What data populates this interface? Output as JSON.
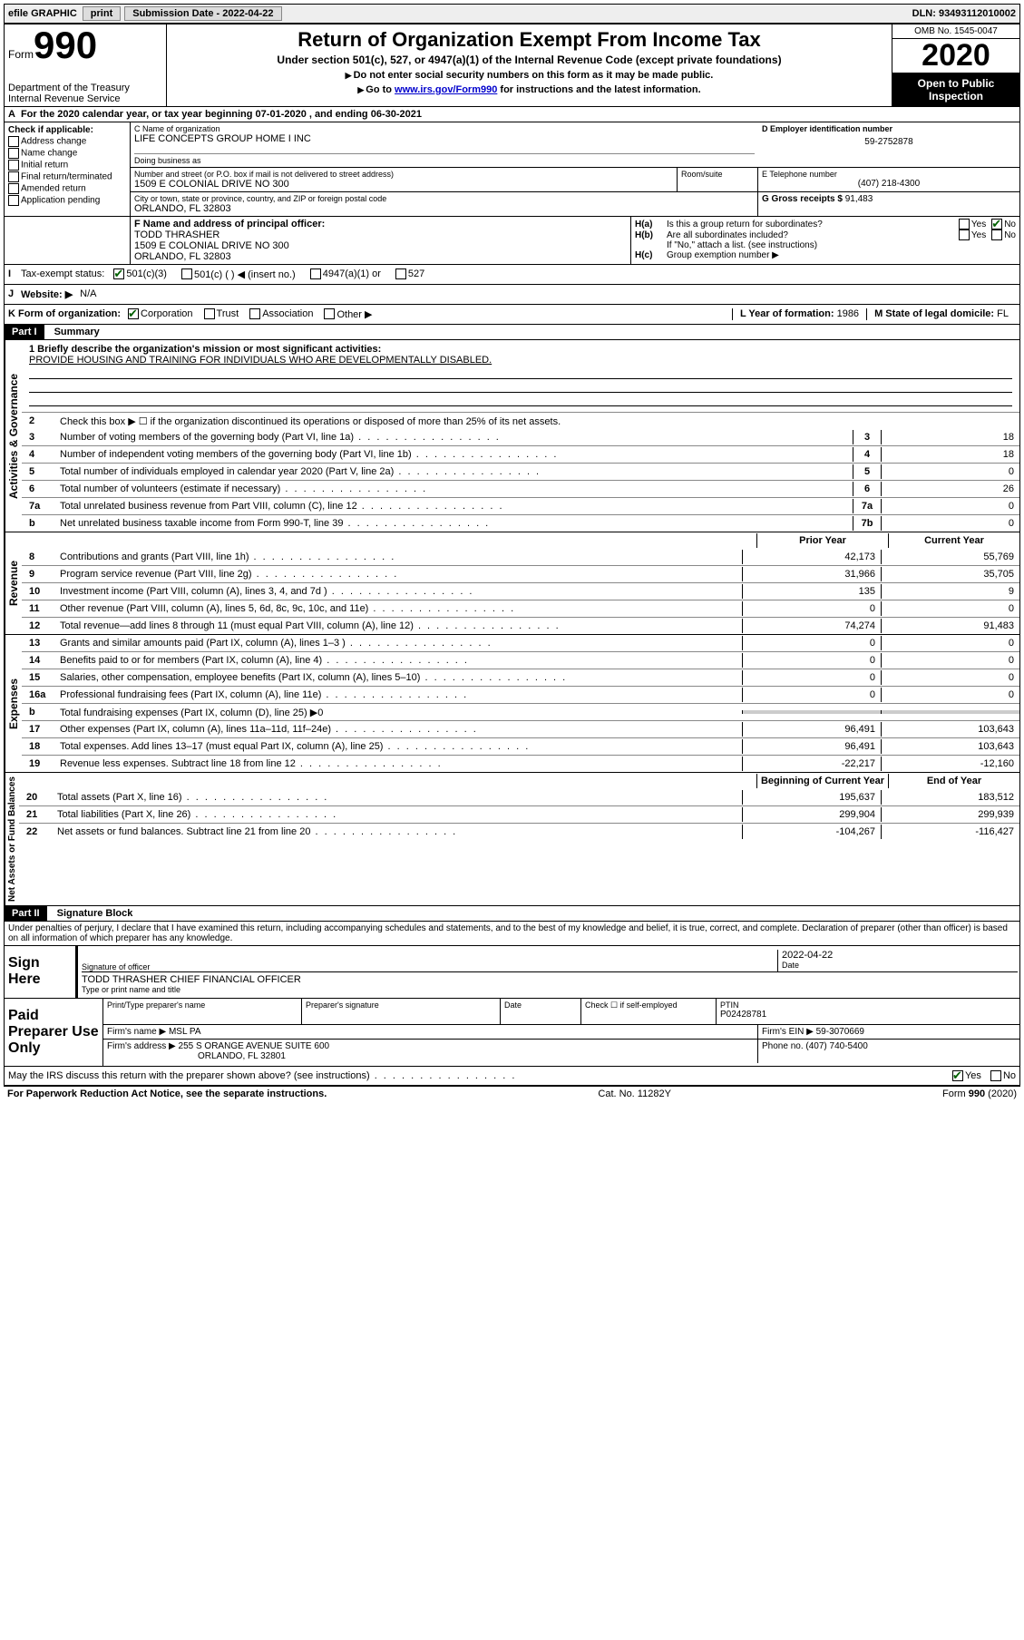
{
  "topbar": {
    "efile": "efile GRAPHIC",
    "print": "print",
    "sub_label": "Submission Date - 2022-04-22",
    "dln": "DLN: 93493112010002"
  },
  "header": {
    "form_prefix": "Form",
    "form_number": "990",
    "dept": "Department of the Treasury\nInternal Revenue Service",
    "title": "Return of Organization Exempt From Income Tax",
    "subtitle": "Under section 501(c), 527, or 4947(a)(1) of the Internal Revenue Code (except private foundations)",
    "instr1": "Do not enter social security numbers on this form as it may be made public.",
    "instr2_pre": "Go to ",
    "instr2_link": "www.irs.gov/Form990",
    "instr2_post": " for instructions and the latest information.",
    "omb": "OMB No. 1545-0047",
    "year": "2020",
    "open_public": "Open to Public Inspection"
  },
  "periodA": "For the 2020 calendar year, or tax year beginning 07-01-2020   , and ending 06-30-2021",
  "checkB": {
    "label": "Check if applicable:",
    "items": [
      "Address change",
      "Name change",
      "Initial return",
      "Final return/terminated",
      "Amended return",
      "Application pending"
    ]
  },
  "org": {
    "name_label": "C Name of organization",
    "name": "LIFE CONCEPTS GROUP HOME I INC",
    "dba_label": "Doing business as",
    "street_label": "Number and street (or P.O. box if mail is not delivered to street address)",
    "room_label": "Room/suite",
    "street": "1509 E COLONIAL DRIVE NO 300",
    "city_label": "City or town, state or province, country, and ZIP or foreign postal code",
    "city": "ORLANDO, FL  32803"
  },
  "boxD": {
    "label": "D Employer identification number",
    "value": "59-2752878"
  },
  "boxE": {
    "label": "E Telephone number",
    "value": "(407) 218-4300"
  },
  "boxG": {
    "label": "G Gross receipts $",
    "value": "91,483"
  },
  "boxF": {
    "label": "F  Name and address of principal officer:",
    "name": "TODD THRASHER",
    "addr1": "1509 E COLONIAL DRIVE NO 300",
    "addr2": "ORLANDO, FL  32803"
  },
  "boxH": {
    "a": "Is this a group return for subordinates?",
    "b": "Are all subordinates included?",
    "b_note": "If \"No,\" attach a list. (see instructions)",
    "c": "Group exemption number ▶",
    "yes": "Yes",
    "no": "No"
  },
  "boxI": {
    "label": "Tax-exempt status:",
    "opts": [
      "501(c)(3)",
      "501(c) (  ) ◀ (insert no.)",
      "4947(a)(1) or",
      "527"
    ]
  },
  "boxJ": {
    "label": "Website: ▶",
    "value": "N/A"
  },
  "boxK": {
    "label": "K Form of organization:",
    "opts": [
      "Corporation",
      "Trust",
      "Association",
      "Other ▶"
    ]
  },
  "boxL": {
    "label": "L Year of formation:",
    "value": "1986"
  },
  "boxM": {
    "label": "M State of legal domicile:",
    "value": "FL"
  },
  "part1": {
    "header": "Part I",
    "title": "Summary",
    "line1_label": "1  Briefly describe the organization's mission or most significant activities:",
    "line1_text": "PROVIDE HOUSING AND TRAINING FOR INDIVIDUALS WHO ARE DEVELOPMENTALLY DISABLED.",
    "line2": "Check this box ▶ ☐  if the organization discontinued its operations or disposed of more than 25% of its net assets.",
    "rows_gov": [
      {
        "n": "3",
        "t": "Number of voting members of the governing body (Part VI, line 1a)",
        "box": "3",
        "v": "18"
      },
      {
        "n": "4",
        "t": "Number of independent voting members of the governing body (Part VI, line 1b)",
        "box": "4",
        "v": "18"
      },
      {
        "n": "5",
        "t": "Total number of individuals employed in calendar year 2020 (Part V, line 2a)",
        "box": "5",
        "v": "0"
      },
      {
        "n": "6",
        "t": "Total number of volunteers (estimate if necessary)",
        "box": "6",
        "v": "26"
      },
      {
        "n": "7a",
        "t": "Total unrelated business revenue from Part VIII, column (C), line 12",
        "box": "7a",
        "v": "0"
      },
      {
        "n": "b",
        "t": "Net unrelated business taxable income from Form 990-T, line 39",
        "box": "7b",
        "v": "0"
      }
    ],
    "col_prior": "Prior Year",
    "col_current": "Current Year",
    "rows_rev": [
      {
        "n": "8",
        "t": "Contributions and grants (Part VIII, line 1h)",
        "p": "42,173",
        "c": "55,769"
      },
      {
        "n": "9",
        "t": "Program service revenue (Part VIII, line 2g)",
        "p": "31,966",
        "c": "35,705"
      },
      {
        "n": "10",
        "t": "Investment income (Part VIII, column (A), lines 3, 4, and 7d )",
        "p": "135",
        "c": "9"
      },
      {
        "n": "11",
        "t": "Other revenue (Part VIII, column (A), lines 5, 6d, 8c, 9c, 10c, and 11e)",
        "p": "0",
        "c": "0"
      },
      {
        "n": "12",
        "t": "Total revenue—add lines 8 through 11 (must equal Part VIII, column (A), line 12)",
        "p": "74,274",
        "c": "91,483"
      }
    ],
    "rows_exp": [
      {
        "n": "13",
        "t": "Grants and similar amounts paid (Part IX, column (A), lines 1–3 )",
        "p": "0",
        "c": "0"
      },
      {
        "n": "14",
        "t": "Benefits paid to or for members (Part IX, column (A), line 4)",
        "p": "0",
        "c": "0"
      },
      {
        "n": "15",
        "t": "Salaries, other compensation, employee benefits (Part IX, column (A), lines 5–10)",
        "p": "0",
        "c": "0"
      },
      {
        "n": "16a",
        "t": "Professional fundraising fees (Part IX, column (A), line 11e)",
        "p": "0",
        "c": "0"
      },
      {
        "n": "b",
        "t": "Total fundraising expenses (Part IX, column (D), line 25) ▶0",
        "p": "",
        "c": "",
        "shaded": true
      },
      {
        "n": "17",
        "t": "Other expenses (Part IX, column (A), lines 11a–11d, 11f–24e)",
        "p": "96,491",
        "c": "103,643"
      },
      {
        "n": "18",
        "t": "Total expenses. Add lines 13–17 (must equal Part IX, column (A), line 25)",
        "p": "96,491",
        "c": "103,643"
      },
      {
        "n": "19",
        "t": "Revenue less expenses. Subtract line 18 from line 12",
        "p": "-22,217",
        "c": "-12,160"
      }
    ],
    "col_begin": "Beginning of Current Year",
    "col_end": "End of Year",
    "rows_net": [
      {
        "n": "20",
        "t": "Total assets (Part X, line 16)",
        "p": "195,637",
        "c": "183,512"
      },
      {
        "n": "21",
        "t": "Total liabilities (Part X, line 26)",
        "p": "299,904",
        "c": "299,939"
      },
      {
        "n": "22",
        "t": "Net assets or fund balances. Subtract line 21 from line 20",
        "p": "-104,267",
        "c": "-116,427"
      }
    ],
    "tabs": {
      "gov": "Activities & Governance",
      "rev": "Revenue",
      "exp": "Expenses",
      "net": "Net Assets or Fund Balances"
    }
  },
  "part2": {
    "header": "Part II",
    "title": "Signature Block",
    "penalty": "Under penalties of perjury, I declare that I have examined this return, including accompanying schedules and statements, and to the best of my knowledge and belief, it is true, correct, and complete. Declaration of preparer (other than officer) is based on all information of which preparer has any knowledge.",
    "sign_here": "Sign Here",
    "sig_officer": "Signature of officer",
    "date_label": "Date",
    "date_val": "2022-04-22",
    "officer_name": "TODD THRASHER  CHIEF FINANCIAL OFFICER",
    "type_name": "Type or print name and title",
    "paid": "Paid Preparer Use Only",
    "prep_name_label": "Print/Type preparer's name",
    "prep_sig_label": "Preparer's signature",
    "check_self": "Check ☐ if self-employed",
    "ptin_label": "PTIN",
    "ptin": "P02428781",
    "firm_name_label": "Firm's name    ▶",
    "firm_name": "MSL PA",
    "firm_ein_label": "Firm's EIN ▶",
    "firm_ein": "59-3070669",
    "firm_addr_label": "Firm's address ▶",
    "firm_addr1": "255 S ORANGE AVENUE SUITE 600",
    "firm_addr2": "ORLANDO, FL  32801",
    "phone_label": "Phone no.",
    "phone": "(407) 740-5400",
    "discuss": "May the IRS discuss this return with the preparer shown above? (see instructions)"
  },
  "footer": {
    "left": "For Paperwork Reduction Act Notice, see the separate instructions.",
    "mid": "Cat. No. 11282Y",
    "right": "Form 990 (2020)"
  }
}
